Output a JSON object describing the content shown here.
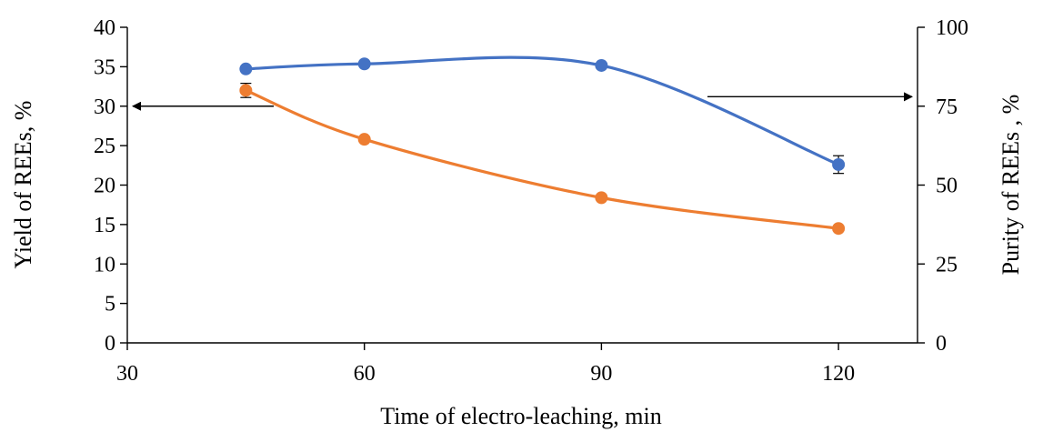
{
  "chart_data": {
    "type": "line",
    "xlabel": "Time of electro-leaching, min",
    "ylabel_left": "Yield of REEs, %",
    "ylabel_right": "Purity of REEs , %",
    "x_ticks": [
      30,
      60,
      90,
      120
    ],
    "y_left_ticks": [
      0,
      5,
      10,
      15,
      20,
      25,
      30,
      35,
      40
    ],
    "y_right_ticks": [
      0,
      25,
      50,
      75,
      100
    ],
    "xlim": [
      30,
      130
    ],
    "ylim_left": [
      0,
      40
    ],
    "ylim_right": [
      0,
      100
    ],
    "grid": false,
    "legend": "none",
    "series": [
      {
        "axis": "right",
        "color": "#4472C4",
        "x": [
          45,
          60,
          90,
          120
        ],
        "values": [
          86.8,
          88.4,
          87.9,
          56.5
        ],
        "error": [
          0,
          0,
          0,
          2.8
        ],
        "arrow_direction": "right"
      },
      {
        "axis": "left",
        "color": "#ED7D31",
        "x": [
          45,
          60,
          90,
          120
        ],
        "values": [
          32.0,
          25.8,
          18.4,
          14.5
        ],
        "error": [
          0.9,
          0,
          0,
          0
        ],
        "arrow_direction": "left"
      }
    ]
  }
}
